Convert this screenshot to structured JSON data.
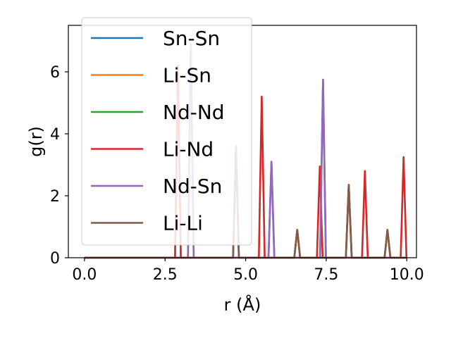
{
  "chart_data": {
    "type": "line",
    "title": "",
    "xlabel": "r (Å)",
    "ylabel": "g(r)",
    "xlim": [
      -0.5,
      10.3
    ],
    "ylim": [
      0,
      7.5
    ],
    "xticks": [
      0.0,
      2.5,
      5.0,
      7.5,
      10.0
    ],
    "xtick_labels": [
      "0.0",
      "2.5",
      "5.0",
      "7.5",
      "10.0"
    ],
    "yticks": [
      0,
      2,
      4,
      6
    ],
    "ytick_labels": [
      "0",
      "2",
      "4",
      "6"
    ],
    "grid": false,
    "legend_position": "top-left",
    "series": [
      {
        "name": "Sn-Sn",
        "color": "#1f77b4",
        "peaks": [
          [
            3.3,
            6.9
          ],
          [
            4.7,
            3.6
          ],
          [
            5.8,
            3.1
          ],
          [
            6.6,
            0.9
          ],
          [
            7.4,
            5.75
          ],
          [
            8.2,
            2.35
          ],
          [
            9.4,
            0.9
          ]
        ]
      },
      {
        "name": "Li-Sn",
        "color": "#ff7f0e",
        "peaks": [
          [
            2.9,
            6.2
          ],
          [
            4.7,
            3.6
          ],
          [
            6.6,
            0.9
          ],
          [
            8.2,
            2.35
          ],
          [
            9.4,
            0.9
          ]
        ]
      },
      {
        "name": "Nd-Nd",
        "color": "#2ca02c",
        "peaks": [
          [
            4.7,
            3.6
          ],
          [
            6.6,
            0.9
          ],
          [
            8.2,
            2.35
          ],
          [
            9.4,
            0.9
          ]
        ]
      },
      {
        "name": "Li-Nd",
        "color": "#d62728",
        "peaks": [
          [
            2.9,
            6.2
          ],
          [
            5.5,
            5.2
          ],
          [
            7.3,
            2.95
          ],
          [
            8.7,
            2.8
          ],
          [
            9.9,
            3.25
          ]
        ]
      },
      {
        "name": "Nd-Sn",
        "color": "#9467bd",
        "peaks": [
          [
            3.3,
            6.9
          ],
          [
            5.8,
            3.1
          ],
          [
            7.4,
            5.75
          ]
        ]
      },
      {
        "name": "Li-Li",
        "color": "#8c564b",
        "peaks": [
          [
            4.7,
            3.6
          ],
          [
            6.6,
            0.9
          ],
          [
            8.2,
            2.35
          ],
          [
            9.4,
            0.9
          ]
        ]
      }
    ]
  }
}
